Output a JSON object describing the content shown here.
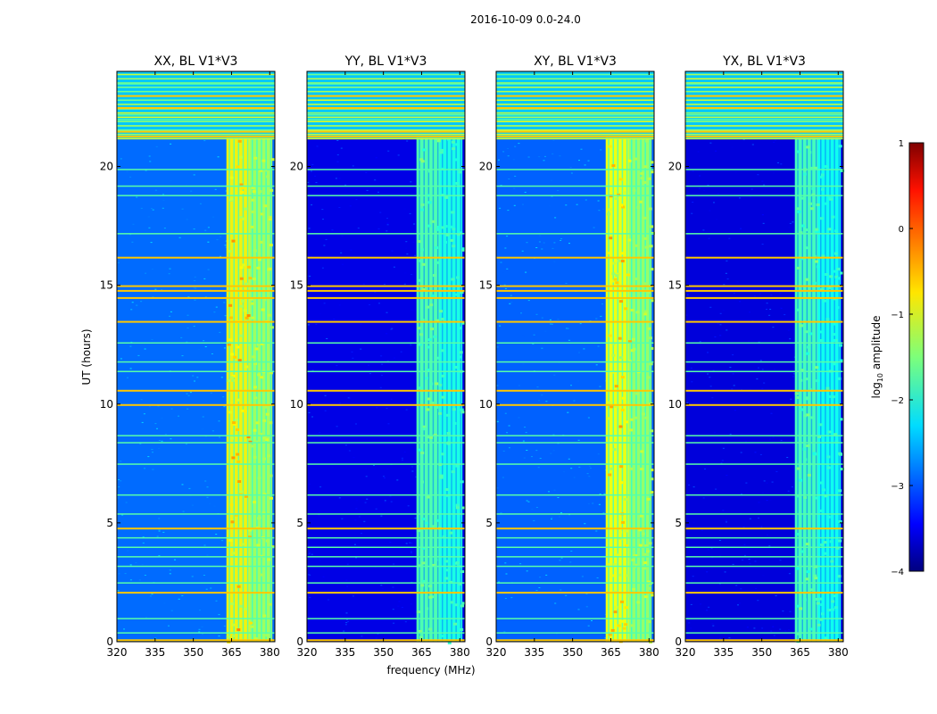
{
  "chart_data": {
    "type": "heatmap",
    "suptitle": "2016-10-09 0.0-24.0",
    "xlabel": "frequency (MHz)",
    "ylabel": "UT (hours)",
    "xlim": [
      320,
      382
    ],
    "ylim": [
      0,
      24
    ],
    "xticks": [
      320,
      335,
      350,
      365,
      380
    ],
    "yticks": [
      0,
      5,
      10,
      15,
      20
    ],
    "panels": [
      {
        "title": "XX, BL V1*V3",
        "background_log": -2.85,
        "band_log": -1.35,
        "band_peak_log": -0.25
      },
      {
        "title": "YY, BL V1*V3",
        "background_log": -3.5,
        "band_log": -2.0,
        "band_peak_log": -1.4
      },
      {
        "title": "XY, BL V1*V3",
        "background_log": -2.9,
        "band_log": -1.4,
        "band_peak_log": -0.35
      },
      {
        "title": "YX, BL V1*V3",
        "background_log": -3.55,
        "band_log": -2.05,
        "band_peak_log": -1.45
      }
    ],
    "band_freq_range_mhz": [
      363,
      381
    ],
    "band_strong_subrange_mhz": [
      363,
      372
    ],
    "saturated_time_range_hours": [
      21.2,
      24.0
    ],
    "hot_rows_hours": [
      0.1,
      2.1,
      4.8,
      10.0,
      10.6,
      13.5,
      14.5,
      14.8,
      15.0,
      16.2,
      21.3,
      21.5,
      22.5,
      23.0
    ],
    "warm_rows_hours": [
      0.4,
      1.0,
      2.5,
      3.2,
      3.6,
      4.0,
      4.4,
      5.4,
      6.2,
      7.5,
      8.4,
      8.7,
      11.4,
      11.8,
      12.6,
      17.2,
      18.8,
      19.2,
      19.9,
      22.0,
      22.2,
      23.5
    ],
    "colorbar": {
      "label_prefix": "log",
      "label_subscript": "10",
      "label_suffix": " amplitude",
      "min": -4,
      "max": 1,
      "ticks": [
        "1",
        "0",
        "−1",
        "−2",
        "−3",
        "−4"
      ],
      "tick_values": [
        1,
        0,
        -1,
        -2,
        -3,
        -4
      ]
    }
  }
}
